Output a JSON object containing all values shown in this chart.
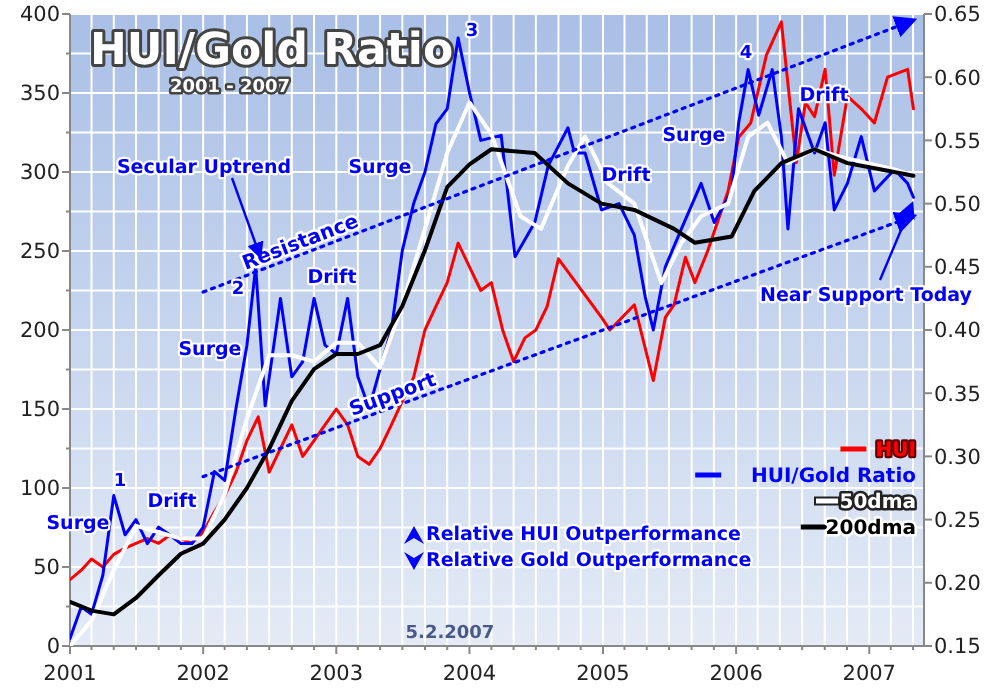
{
  "chart_data": {
    "type": "line",
    "title": "HUI/Gold Ratio",
    "subtitle": "2001 - 2007",
    "xlim": [
      "2001-01-01",
      "2007-05-31"
    ],
    "xticks": [
      {
        "value": "2001-01-01",
        "label": "2001"
      },
      {
        "value": "2001-03-01",
        "label": null
      },
      {
        "value": "2001-05-01",
        "label": null
      },
      {
        "value": "2001-07-01",
        "label": null
      },
      {
        "value": "2001-09-01",
        "label": null
      },
      {
        "value": "2001-11-01",
        "label": null
      },
      {
        "value": "2002-01-01",
        "label": "2002"
      },
      {
        "value": "2002-03-01",
        "label": null
      },
      {
        "value": "2002-05-01",
        "label": null
      },
      {
        "value": "2002-07-01",
        "label": null
      },
      {
        "value": "2002-09-01",
        "label": null
      },
      {
        "value": "2002-11-01",
        "label": null
      },
      {
        "value": "2003-01-01",
        "label": "2003"
      },
      {
        "value": "2003-03-01",
        "label": null
      },
      {
        "value": "2003-05-01",
        "label": null
      },
      {
        "value": "2003-07-01",
        "label": null
      },
      {
        "value": "2003-09-01",
        "label": null
      },
      {
        "value": "2003-11-01",
        "label": null
      },
      {
        "value": "2004-01-01",
        "label": "2004"
      },
      {
        "value": "2004-03-01",
        "label": null
      },
      {
        "value": "2004-05-01",
        "label": null
      },
      {
        "value": "2004-07-01",
        "label": null
      },
      {
        "value": "2004-09-01",
        "label": null
      },
      {
        "value": "2004-11-01",
        "label": null
      },
      {
        "value": "2005-01-01",
        "label": "2005"
      },
      {
        "value": "2005-03-01",
        "label": null
      },
      {
        "value": "2005-05-01",
        "label": null
      },
      {
        "value": "2005-07-01",
        "label": null
      },
      {
        "value": "2005-09-01",
        "label": null
      },
      {
        "value": "2005-11-01",
        "label": null
      },
      {
        "value": "2006-01-01",
        "label": "2006"
      },
      {
        "value": "2006-03-01",
        "label": null
      },
      {
        "value": "2006-05-01",
        "label": null
      },
      {
        "value": "2006-07-01",
        "label": null
      },
      {
        "value": "2006-09-01",
        "label": null
      },
      {
        "value": "2006-11-01",
        "label": null
      },
      {
        "value": "2007-01-01",
        "label": "2007"
      },
      {
        "value": "2007-03-01",
        "label": null
      },
      {
        "value": "2007-05-01",
        "label": null
      }
    ],
    "ylim": [
      0,
      400
    ],
    "yticks": [
      0,
      {
        "value": 25,
        "label": null
      },
      50,
      {
        "value": 75,
        "label": null
      },
      100,
      {
        "value": 125,
        "label": null
      },
      150,
      {
        "value": 175,
        "label": null
      },
      200,
      {
        "value": 225,
        "label": null
      },
      250,
      {
        "value": 275,
        "label": null
      },
      300,
      {
        "value": 325,
        "label": null
      },
      350,
      {
        "value": 375,
        "label": null
      },
      400
    ],
    "y2lim": [
      0.15,
      0.65
    ],
    "y2ticks": [
      {
        "value": 0.15,
        "label": "0.15"
      },
      {
        "value": 0.2,
        "label": "0.20"
      },
      {
        "value": 0.25,
        "label": "0.25"
      },
      {
        "value": 0.3,
        "label": "0.30"
      },
      {
        "value": 0.35,
        "label": "0.35"
      },
      {
        "value": 0.4,
        "label": "0.40"
      },
      {
        "value": 0.45,
        "label": "0.45"
      },
      {
        "value": 0.5,
        "label": "0.50"
      },
      {
        "value": 0.55,
        "label": "0.55"
      },
      {
        "value": 0.6,
        "label": "0.60"
      },
      {
        "value": 0.65,
        "label": "0.65"
      }
    ],
    "grid": true,
    "legend": "bottom right",
    "series": [
      {
        "name": "HUI",
        "color": "#ff0000",
        "x": [
          "2001-01",
          "2001-02",
          "2001-03",
          "2001-04",
          "2001-05",
          "2001-06",
          "2001-07",
          "2001-08",
          "2001-09",
          "2001-10",
          "2001-11",
          "2001-12",
          "2002-01",
          "2002-02",
          "2002-03",
          "2002-04",
          "2002-05",
          "2002-06",
          "2002-07",
          "2002-08",
          "2002-09",
          "2002-10",
          "2002-11",
          "2002-12",
          "2003-01",
          "2003-02",
          "2003-03",
          "2003-04",
          "2003-05",
          "2003-06",
          "2003-07",
          "2003-08",
          "2003-09",
          "2003-10",
          "2003-11",
          "2003-12",
          "2004-01",
          "2004-02",
          "2004-03",
          "2004-04",
          "2004-05",
          "2004-06",
          "2004-07",
          "2004-08",
          "2004-09",
          "2004-12-28",
          "2005-01-20",
          "2005-03-28",
          "2005-05-19",
          "2005-06-21",
          "2005-07-15",
          "2005-08-15",
          "2005-09-10",
          "2005-10-15",
          "2005-12-10",
          "2006-01-08",
          "2006-02-10",
          "2006-03-25",
          "2006-05-05",
          "2006-06-15",
          "2006-07-10",
          "2006-08-04",
          "2006-09-02",
          "2006-09-27",
          "2006-11-02",
          "2006-12-10",
          "2007-01-15",
          "2007-02-20",
          "2007-04-16",
          "2007-05-02"
        ],
        "values": [
          42,
          48,
          55,
          50,
          58,
          62,
          65,
          68,
          65,
          70,
          68,
          65,
          72,
          85,
          95,
          110,
          130,
          145,
          110,
          125,
          140,
          120,
          130,
          140,
          150,
          140,
          120,
          115,
          125,
          140,
          155,
          170,
          200,
          215,
          230,
          255,
          240,
          225,
          230,
          200,
          180,
          195,
          200,
          215,
          245,
          208,
          200,
          216,
          168,
          208,
          216,
          246,
          230,
          250,
          288,
          322,
          331,
          374,
          395,
          306,
          344,
          335,
          365,
          298,
          348,
          340,
          331,
          360,
          365,
          340
        ]
      },
      {
        "name": "HUI/Gold Ratio",
        "color": "#0000ff",
        "axis": "y2",
        "x": [
          "2001-01",
          "2001-02",
          "2001-03",
          "2001-04",
          "2001-05",
          "2001-06",
          "2001-07",
          "2001-08",
          "2001-09",
          "2001-10",
          "2001-11",
          "2001-12",
          "2002-01",
          "2002-02",
          "2002-03",
          "2002-04",
          "2002-05",
          "2002-05-25",
          "2002-06-20",
          "2002-08",
          "2002-09",
          "2002-10",
          "2002-11",
          "2002-12",
          "2003-01",
          "2003-02",
          "2003-03",
          "2003-04",
          "2003-05",
          "2003-06",
          "2003-07",
          "2003-08",
          "2003-09",
          "2003-10",
          "2003-11",
          "2003-12",
          "2004-01",
          "2004-02",
          "2004-03-28",
          "2004-05-05",
          "2004-06-28",
          "2004-08-04",
          "2004-09-27",
          "2004-10-15",
          "2004-11-13",
          "2004-12-28",
          "2005-02-14",
          "2005-03-28",
          "2005-04-27",
          "2005-05-19",
          "2005-06-21",
          "2005-08-04",
          "2005-09-27",
          "2005-11-02",
          "2005-12-20",
          "2006-01-08",
          "2006-02-03",
          "2006-03-04",
          "2006-04-10",
          "2006-05-05",
          "2006-05-23",
          "2006-06-21",
          "2006-08-04",
          "2006-09-02",
          "2006-09-27",
          "2006-11-02",
          "2006-12-10",
          "2007-01-15",
          "2007-03-11",
          "2007-04-16",
          "2007-05-02"
        ],
        "values": [
          0.156,
          0.181,
          0.175,
          0.206,
          0.269,
          0.238,
          0.25,
          0.231,
          0.244,
          0.238,
          0.231,
          0.231,
          0.244,
          0.288,
          0.281,
          0.338,
          0.388,
          0.45,
          0.34,
          0.425,
          0.363,
          0.375,
          0.425,
          0.388,
          0.381,
          0.425,
          0.363,
          0.338,
          0.369,
          0.4,
          0.463,
          0.5,
          0.525,
          0.563,
          0.575,
          0.631,
          0.588,
          0.55,
          0.554,
          0.458,
          0.485,
          0.53,
          0.56,
          0.54,
          0.54,
          0.495,
          0.5,
          0.475,
          0.426,
          0.4,
          0.45,
          0.48,
          0.516,
          0.485,
          0.51,
          0.564,
          0.606,
          0.57,
          0.606,
          0.553,
          0.48,
          0.575,
          0.54,
          0.564,
          0.495,
          0.516,
          0.553,
          0.51,
          0.527,
          0.516,
          0.505
        ]
      },
      {
        "name": "50dma",
        "color": "#ffffff",
        "axis": "y2",
        "x": [
          "2001-01",
          "2001-03",
          "2001-05",
          "2001-07",
          "2001-09",
          "2001-11",
          "2002-01",
          "2002-03",
          "2002-05",
          "2002-07",
          "2002-09",
          "2002-11",
          "2003-01",
          "2003-03",
          "2003-05",
          "2003-07",
          "2003-09",
          "2003-11",
          "2004-01",
          "2004-03",
          "2004-05-20",
          "2004-07-15",
          "2004-09-27",
          "2004-11-13",
          "2005-01-15",
          "2005-03-28",
          "2005-06-10",
          "2005-08-04",
          "2005-09-27",
          "2005-12-10",
          "2006-02-03",
          "2006-03-28",
          "2006-05-23",
          "2006-08-04",
          "2006-10-15",
          "2006-12-28",
          "2007-03-11",
          "2007-05-02"
        ],
        "values": [
          0.15,
          0.17,
          0.21,
          0.245,
          0.24,
          0.235,
          0.235,
          0.27,
          0.33,
          0.38,
          0.38,
          0.375,
          0.39,
          0.39,
          0.37,
          0.42,
          0.48,
          0.54,
          0.58,
          0.555,
          0.49,
          0.48,
          0.53,
          0.553,
          0.516,
          0.5,
          0.437,
          0.469,
          0.49,
          0.5,
          0.553,
          0.564,
          0.532,
          0.543,
          0.537,
          0.532,
          0.527,
          0.522
        ]
      },
      {
        "name": "200dma",
        "color": "#000000",
        "axis": "y2",
        "x": [
          "2001-01",
          "2001-03",
          "2001-05",
          "2001-07",
          "2001-09",
          "2001-11",
          "2002-01",
          "2002-03",
          "2002-05",
          "2002-07",
          "2002-09",
          "2002-11",
          "2003-01",
          "2003-03",
          "2003-05",
          "2003-07",
          "2003-09",
          "2003-11",
          "2004-01",
          "2004-03",
          "2004-06-28",
          "2004-09-27",
          "2004-12-28",
          "2005-03-28",
          "2005-07-15",
          "2005-09-10",
          "2005-12-20",
          "2006-02-20",
          "2006-05-05",
          "2006-08-04",
          "2006-11-02",
          "2007-02-03",
          "2007-05-02"
        ],
        "values": [
          0.185,
          0.178,
          0.175,
          0.188,
          0.206,
          0.223,
          0.231,
          0.25,
          0.275,
          0.306,
          0.344,
          0.369,
          0.381,
          0.381,
          0.388,
          0.419,
          0.463,
          0.513,
          0.531,
          0.543,
          0.54,
          0.516,
          0.5,
          0.495,
          0.48,
          0.469,
          0.474,
          0.51,
          0.532,
          0.543,
          0.532,
          0.527,
          0.522
        ]
      },
      {
        "name": "Resistance",
        "color": "#0000ff",
        "axis": "y2",
        "line_style": "dotted",
        "x": [
          "2002-01-01",
          "2007-05-01"
        ],
        "values": [
          0.43,
          0.645
        ]
      },
      {
        "name": "Support",
        "color": "#0000ff",
        "axis": "y2",
        "line_style": "dotted",
        "x": [
          "2002-01-01",
          "2007-05-01"
        ],
        "values": [
          0.284,
          0.49
        ]
      }
    ],
    "annotations": [
      "Surge",
      "1",
      "Drift",
      "Surge",
      "2",
      "Drift",
      "Secular Uptrend",
      "Surge",
      "3",
      "Drift",
      "Surge",
      "4",
      "Drift",
      "Near Support Today",
      "Relative HUI Outperformance",
      "Relative Gold Outperformance",
      "5.2.2007"
    ]
  }
}
